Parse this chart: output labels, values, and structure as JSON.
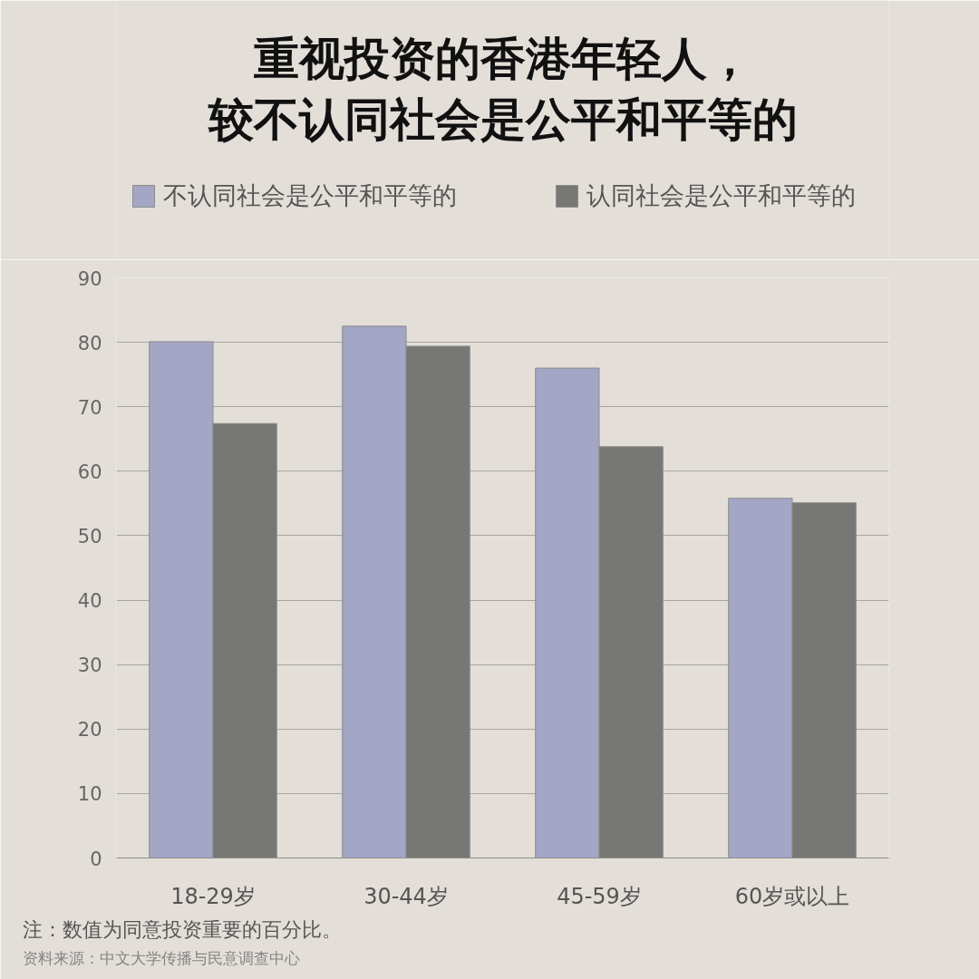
{
  "chart_data": {
    "type": "bar",
    "title": "重视投资的香港年轻人，较不认同社会是公平和平等的",
    "categories": [
      "18-29岁",
      "30-44岁",
      "45-59岁",
      "60岁或以上"
    ],
    "series": [
      {
        "name": "不认同社会是公平和平等的",
        "color": "#a3a6c4",
        "values": [
          80.1,
          82.5,
          76.0,
          55.8
        ]
      },
      {
        "name": "认同社会是公平和平等的",
        "color": "#777876",
        "values": [
          67.4,
          79.4,
          63.8,
          55.1
        ]
      }
    ],
    "ylim": [
      0,
      90
    ],
    "yticks": [
      0,
      10,
      20,
      30,
      40,
      50,
      60,
      70,
      80,
      90
    ],
    "grid": "y",
    "legend": "top",
    "annotations": [
      "注：数值为同意投资重要的百分比。",
      "资料来源：中文大学传播与民意调查中心"
    ]
  }
}
